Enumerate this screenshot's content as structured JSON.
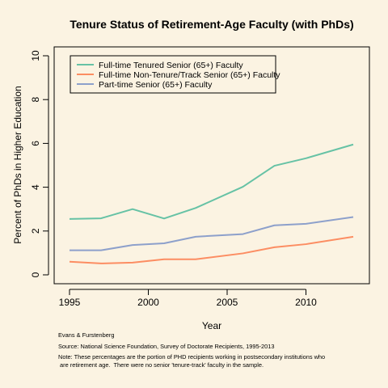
{
  "background": "#fbf3e2",
  "chart_data": {
    "type": "line",
    "title": "Tenure Status of Retirement-Age Faculty (with PhDs)",
    "xlabel": "Year",
    "ylabel": "Percent of PhDs in Higher Education",
    "xlim": [
      1995,
      2013
    ],
    "ylim": [
      0,
      10
    ],
    "x_ticks": [
      1995,
      2000,
      2005,
      2010
    ],
    "y_ticks": [
      0,
      2,
      4,
      6,
      8,
      10
    ],
    "grid": false,
    "legend_position": "top-left",
    "x": [
      1995,
      1997,
      1999,
      2001,
      2003,
      2006,
      2008,
      2010,
      2013
    ],
    "series": [
      {
        "name": "Full-time Tenured Senior (65+) Faculty",
        "color": "#66c2a5",
        "values": [
          2.55,
          2.58,
          3.0,
          2.57,
          3.05,
          4.02,
          4.98,
          5.32,
          5.95
        ]
      },
      {
        "name": "Full-time Non-Tenure/Track Senior (65+) Faculty",
        "color": "#fc8d62",
        "values": [
          0.6,
          0.52,
          0.56,
          0.71,
          0.71,
          0.98,
          1.26,
          1.4,
          1.74
        ]
      },
      {
        "name": "Part-time Senior (65+) Faculty",
        "color": "#8da0cb",
        "values": [
          1.12,
          1.12,
          1.36,
          1.44,
          1.74,
          1.86,
          2.26,
          2.33,
          2.64
        ]
      }
    ]
  },
  "footnotes": {
    "authors": "Evans & Furstenberg",
    "source": "Source: National Science Foundation, Survey of Doctorate Recipients, 1995-2013",
    "note_line1": "Note: These percentages are the portion of PHD recipients working in postsecondary institutions who",
    "note_line2": " are retirement age.  There were no senior 'tenure-track' faculty in the sample."
  }
}
